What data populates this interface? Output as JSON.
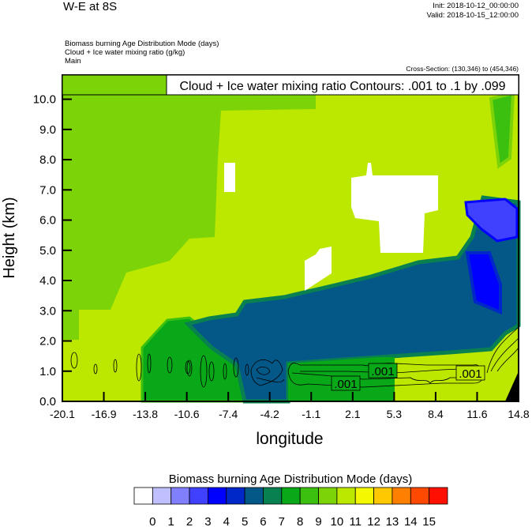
{
  "header": {
    "title": "W-E at 8S",
    "init": "Init: 2018-10-12_00:00:00",
    "valid": "Valid: 2018-10-15_12:00:00",
    "fields": [
      "Biomass burning Age Distribution Mode   (days)",
      "Cloud + Ice water mixing ratio   (g/kg)",
      "Main"
    ],
    "cross_section": "Cross-Section: (130,346) to (454,346)"
  },
  "chart_data": {
    "type": "heatmap",
    "title": "W-E at 8S",
    "xlabel": "longitude",
    "ylabel": "Height (km)",
    "xlim": [
      -20.1,
      14.8
    ],
    "ylim": [
      0.0,
      10.8
    ],
    "xticks": [
      "-20.1",
      "-16.9",
      "-13.8",
      "-10.6",
      "-7.4",
      "-4.2",
      "-1.1",
      "2.1",
      "5.3",
      "8.4",
      "11.6",
      "14.8"
    ],
    "yticks": [
      "0.0",
      "1.0",
      "2.0",
      "3.0",
      "4.0",
      "5.0",
      "6.0",
      "7.0",
      "8.0",
      "9.0",
      "10.0"
    ],
    "contour_info": "Cloud + Ice water mixing ratio Contours: .001 to .1 by .099",
    "contour_labels": [
      ".001",
      ".001",
      ".001"
    ],
    "colorbar": {
      "title": "Biomass burning Age Distribution Mode  (days)",
      "levels": [
        "0",
        "1",
        "2",
        "3",
        "4",
        "5",
        "6",
        "7",
        "8",
        "9",
        "10",
        "11",
        "12",
        "13",
        "14",
        "15"
      ],
      "colors": [
        "#ffffff",
        "#c0c0ff",
        "#8080ff",
        "#4040ff",
        "#0000ff",
        "#0028c8",
        "#045888",
        "#088050",
        "#08a818",
        "#3cc010",
        "#7cd408",
        "#bce800",
        "#f4f800",
        "#ffc800",
        "#ff8000",
        "#ff4800",
        "#ff1000"
      ]
    }
  }
}
